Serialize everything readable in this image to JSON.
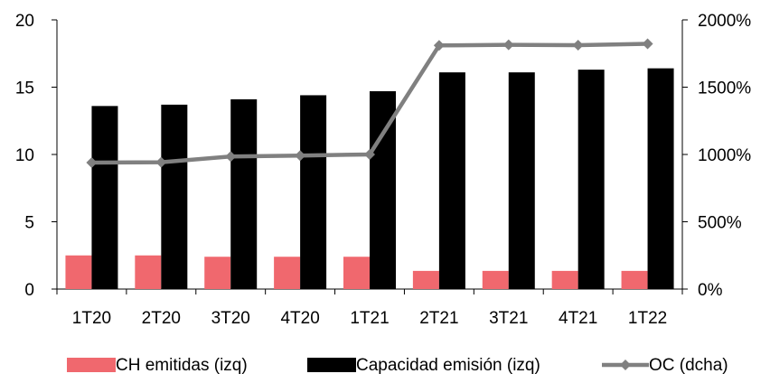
{
  "chart_data": {
    "type": "bar",
    "categories": [
      "1T20",
      "2T20",
      "3T20",
      "4T20",
      "1T21",
      "2T21",
      "3T21",
      "4T21",
      "1T22"
    ],
    "series": [
      {
        "name": "CH emitidas (izq)",
        "type": "bar",
        "axis": "left",
        "color": "#f0686e",
        "values": [
          2.5,
          2.5,
          2.4,
          2.4,
          2.4,
          1.35,
          1.35,
          1.35,
          1.35
        ]
      },
      {
        "name": "Capacidad emisión (izq)",
        "type": "bar",
        "axis": "left",
        "color": "#000000",
        "values": [
          13.6,
          13.7,
          14.1,
          14.4,
          14.7,
          16.1,
          16.1,
          16.3,
          16.4
        ]
      },
      {
        "name": "OC (dcha)",
        "type": "line",
        "axis": "right",
        "color": "#808080",
        "values": [
          940,
          942,
          985,
          992,
          1000,
          1810,
          1815,
          1812,
          1822
        ]
      }
    ],
    "y_left": {
      "ylim": [
        0,
        20
      ],
      "ticks": [
        "0",
        "5",
        "10",
        "15",
        "20"
      ]
    },
    "y_right": {
      "ylim": [
        0,
        2000
      ],
      "ticks": [
        "0%",
        "500%",
        "1000%",
        "1500%",
        "2000%"
      ]
    },
    "legend": "bottom",
    "grid": false,
    "title": "",
    "xlabel": "",
    "ylabel": ""
  }
}
